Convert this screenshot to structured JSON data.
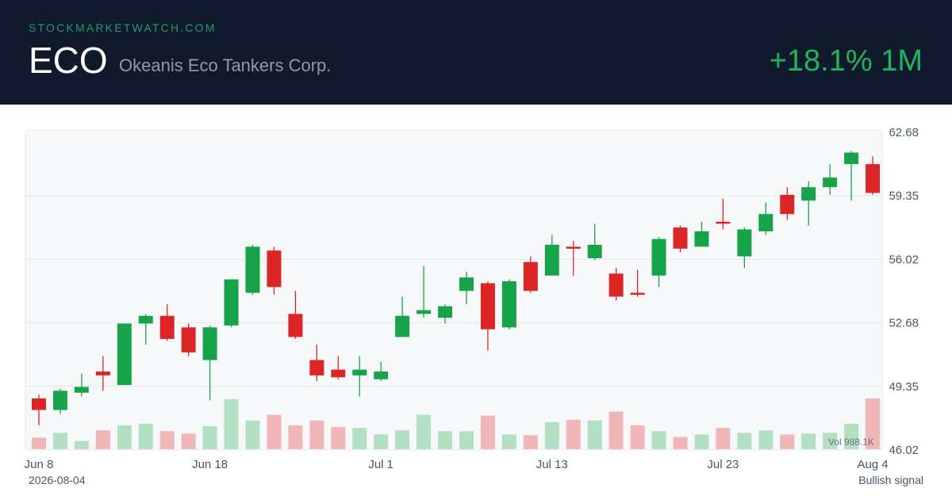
{
  "header": {
    "site": "STOCKMARKETWATCH.COM",
    "ticker": "ECO",
    "company": "Okeanis Eco Tankers Corp.",
    "change": "+18.1% 1M"
  },
  "footer": {
    "date": "2026-08-04",
    "signal": "Bullish signal"
  },
  "colors": {
    "up": "#16a34a",
    "down": "#dc2626",
    "vol_up": "#b3dfc2",
    "vol_down": "#f0b6b8",
    "header_bg": "#111a2c",
    "accent": "#1eb55c"
  },
  "chart_data": {
    "type": "candlestick",
    "y_ticks": [
      "62.68",
      "59.35",
      "56.02",
      "52.68",
      "49.35",
      "46.02"
    ],
    "ylim": [
      46.02,
      62.68
    ],
    "x_tick_labels": [
      {
        "index": 0,
        "label": "Jun 8"
      },
      {
        "index": 8,
        "label": "Jun 18"
      },
      {
        "index": 16,
        "label": "Jul 1"
      },
      {
        "index": 24,
        "label": "Jul 13"
      },
      {
        "index": 32,
        "label": "Jul 23"
      },
      {
        "index": 39,
        "label": "Aug 4"
      }
    ],
    "volume_label": "Vol 988.1K",
    "grid": true,
    "candles": [
      {
        "o": 48.7,
        "h": 48.9,
        "l": 47.3,
        "c": 48.1,
        "v": 0.14
      },
      {
        "o": 48.1,
        "h": 49.2,
        "l": 47.9,
        "c": 49.1,
        "v": 0.2
      },
      {
        "o": 49.0,
        "h": 50.0,
        "l": 48.8,
        "c": 49.3,
        "v": 0.1
      },
      {
        "o": 50.1,
        "h": 50.9,
        "l": 49.1,
        "c": 49.9,
        "v": 0.23
      },
      {
        "o": 49.4,
        "h": 52.6,
        "l": 49.4,
        "c": 52.6,
        "v": 0.29
      },
      {
        "o": 52.6,
        "h": 53.1,
        "l": 51.5,
        "c": 53.0,
        "v": 0.31
      },
      {
        "o": 53.0,
        "h": 53.6,
        "l": 51.7,
        "c": 51.8,
        "v": 0.22
      },
      {
        "o": 52.4,
        "h": 52.6,
        "l": 50.9,
        "c": 51.1,
        "v": 0.19
      },
      {
        "o": 50.7,
        "h": 52.5,
        "l": 48.6,
        "c": 52.4,
        "v": 0.28
      },
      {
        "o": 52.5,
        "h": 54.9,
        "l": 52.4,
        "c": 54.9,
        "v": 0.61
      },
      {
        "o": 54.2,
        "h": 56.7,
        "l": 54.1,
        "c": 56.6,
        "v": 0.35
      },
      {
        "o": 56.4,
        "h": 56.6,
        "l": 54.1,
        "c": 54.5,
        "v": 0.42
      },
      {
        "o": 53.1,
        "h": 54.3,
        "l": 51.8,
        "c": 51.9,
        "v": 0.29
      },
      {
        "o": 50.7,
        "h": 51.5,
        "l": 49.6,
        "c": 49.9,
        "v": 0.35
      },
      {
        "o": 50.2,
        "h": 50.9,
        "l": 49.7,
        "c": 49.8,
        "v": 0.27
      },
      {
        "o": 49.9,
        "h": 50.9,
        "l": 48.8,
        "c": 50.2,
        "v": 0.26
      },
      {
        "o": 49.7,
        "h": 50.6,
        "l": 49.6,
        "c": 50.1,
        "v": 0.18
      },
      {
        "o": 51.9,
        "h": 54.0,
        "l": 51.9,
        "c": 53.0,
        "v": 0.23
      },
      {
        "o": 53.1,
        "h": 55.6,
        "l": 52.9,
        "c": 53.3,
        "v": 0.42
      },
      {
        "o": 52.9,
        "h": 53.6,
        "l": 52.6,
        "c": 53.5,
        "v": 0.22
      },
      {
        "o": 54.3,
        "h": 55.3,
        "l": 53.6,
        "c": 55.0,
        "v": 0.22
      },
      {
        "o": 54.7,
        "h": 54.8,
        "l": 51.2,
        "c": 52.3,
        "v": 0.41
      },
      {
        "o": 52.4,
        "h": 54.9,
        "l": 52.3,
        "c": 54.8,
        "v": 0.18
      },
      {
        "o": 55.8,
        "h": 56.1,
        "l": 54.2,
        "c": 54.3,
        "v": 0.17
      },
      {
        "o": 55.1,
        "h": 57.2,
        "l": 55.1,
        "c": 56.7,
        "v": 0.33
      },
      {
        "o": 56.6,
        "h": 56.9,
        "l": 55.1,
        "c": 56.5,
        "v": 0.36
      },
      {
        "o": 56.0,
        "h": 57.8,
        "l": 55.9,
        "c": 56.7,
        "v": 0.35
      },
      {
        "o": 55.2,
        "h": 55.5,
        "l": 53.8,
        "c": 54.0,
        "v": 0.46
      },
      {
        "o": 54.2,
        "h": 55.4,
        "l": 54.0,
        "c": 54.1,
        "v": 0.29
      },
      {
        "o": 55.1,
        "h": 57.1,
        "l": 54.5,
        "c": 57.0,
        "v": 0.22
      },
      {
        "o": 57.6,
        "h": 57.7,
        "l": 56.3,
        "c": 56.5,
        "v": 0.15
      },
      {
        "o": 56.6,
        "h": 57.9,
        "l": 56.6,
        "c": 57.4,
        "v": 0.18
      },
      {
        "o": 57.9,
        "h": 59.1,
        "l": 57.5,
        "c": 57.8,
        "v": 0.26
      },
      {
        "o": 56.1,
        "h": 57.6,
        "l": 55.5,
        "c": 57.5,
        "v": 0.2
      },
      {
        "o": 57.4,
        "h": 58.9,
        "l": 57.2,
        "c": 58.3,
        "v": 0.23
      },
      {
        "o": 59.3,
        "h": 59.7,
        "l": 58.0,
        "c": 58.3,
        "v": 0.18
      },
      {
        "o": 59.0,
        "h": 60.0,
        "l": 57.7,
        "c": 59.7,
        "v": 0.19
      },
      {
        "o": 59.7,
        "h": 60.9,
        "l": 59.3,
        "c": 60.2,
        "v": 0.2
      },
      {
        "o": 60.9,
        "h": 61.6,
        "l": 59.0,
        "c": 61.5,
        "v": 0.31
      },
      {
        "o": 60.9,
        "h": 61.3,
        "l": 59.3,
        "c": 59.4,
        "v": 0.62
      }
    ]
  }
}
